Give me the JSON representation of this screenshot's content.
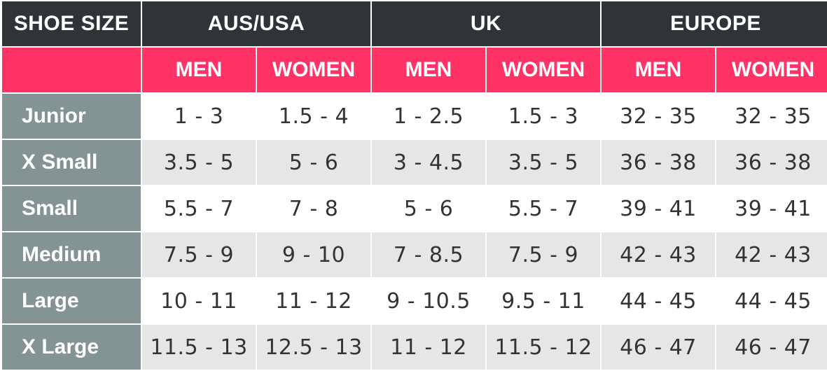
{
  "header": {
    "corner": "SHOE SIZE",
    "regions": [
      "AUS/USA",
      "UK",
      "EUROPE"
    ]
  },
  "subheader": [
    "MEN",
    "WOMEN",
    "MEN",
    "WOMEN",
    "MEN",
    "WOMEN"
  ],
  "rows": [
    {
      "label": "Junior",
      "values": [
        "1 - 3",
        "1.5 - 4",
        "1 - 2.5",
        "1.5 - 3",
        "32 - 35",
        "32 - 35"
      ]
    },
    {
      "label": "X Small",
      "values": [
        "3.5 - 5",
        "5 - 6",
        "3 - 4.5",
        "3.5 - 5",
        "36 - 38",
        "36 - 38"
      ]
    },
    {
      "label": "Small",
      "values": [
        "5.5 - 7",
        "7 - 8",
        "5 - 6",
        "5.5 - 7",
        "39 - 41",
        "39 - 41"
      ]
    },
    {
      "label": "Medium",
      "values": [
        "7.5 - 9",
        "9 - 10",
        "7 - 8.5",
        "7.5 - 9",
        "42 - 43",
        "42 - 43"
      ]
    },
    {
      "label": "Large",
      "values": [
        "10 - 11",
        "11 - 12",
        "9 - 10.5",
        "9.5 - 11",
        "44 - 45",
        "44 - 45"
      ]
    },
    {
      "label": "X Large",
      "values": [
        "11.5 - 13",
        "12.5 - 13",
        "11 - 12",
        "11.5 - 12",
        "46 - 47",
        "46 - 47"
      ]
    }
  ],
  "colors": {
    "header_bg": "#2f3537",
    "subheader_bg": "#ff3366",
    "rowlabel_bg": "#849393",
    "stripe_bg": "#e6e6e6",
    "value_text": "#333333"
  }
}
